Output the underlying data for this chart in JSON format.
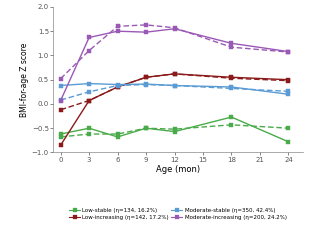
{
  "age_points": [
    0,
    3,
    6,
    9,
    12,
    18,
    24
  ],
  "low_stable_solid": [
    -0.62,
    -0.5,
    -0.68,
    -0.5,
    -0.57,
    -0.27,
    -0.78
  ],
  "low_stable_dashed": [
    -0.68,
    -0.62,
    -0.62,
    -0.5,
    -0.52,
    -0.43,
    -0.5
  ],
  "low_increasing_solid": [
    -0.85,
    0.07,
    0.35,
    0.55,
    0.62,
    0.55,
    0.5
  ],
  "low_increasing_dashed": [
    -0.12,
    0.07,
    0.35,
    0.55,
    0.62,
    0.53,
    0.48
  ],
  "moderate_stable_solid": [
    0.38,
    0.42,
    0.4,
    0.41,
    0.38,
    0.35,
    0.2
  ],
  "moderate_stable_dashed": [
    0.08,
    0.25,
    0.38,
    0.4,
    0.38,
    0.32,
    0.26
  ],
  "moderate_increasing_solid": [
    0.07,
    1.37,
    1.5,
    1.48,
    1.55,
    1.25,
    1.08
  ],
  "moderate_increasing_dashed": [
    0.52,
    1.1,
    1.6,
    1.63,
    1.57,
    1.17,
    1.07
  ],
  "colors": {
    "low_stable": "#4aab4a",
    "low_increasing": "#8b1a1a",
    "moderate_stable": "#5b9bd5",
    "moderate_increasing": "#9b59b6"
  },
  "ylim": [
    -1.0,
    2.0
  ],
  "yticks": [
    -1.0,
    -0.5,
    0.0,
    0.5,
    1.0,
    1.5,
    2.0
  ],
  "xticks": [
    0,
    3,
    6,
    9,
    12,
    15,
    18,
    21,
    24
  ],
  "xlabel": "Age (mon)",
  "ylabel": "BMI-for-age Z score",
  "legend": [
    {
      "label": "Low-stable (η=134, 16.2%)",
      "color": "#4aab4a"
    },
    {
      "label": "Low-increasing (η=142, 17.2%)",
      "color": "#8b1a1a"
    },
    {
      "label": "Moderate-stable (η=350, 42.4%)",
      "color": "#5b9bd5"
    },
    {
      "label": "Moderate-increasing (η=200, 24.2%)",
      "color": "#9b59b6"
    }
  ]
}
